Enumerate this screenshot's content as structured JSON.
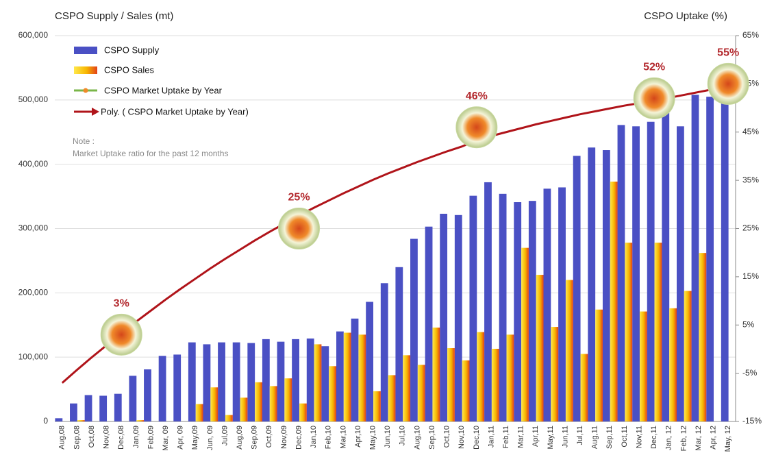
{
  "chart_data": {
    "type": "bar",
    "y_title": "CSPO Supply / Sales (mt)",
    "y2_title": "CSPO Uptake (%)",
    "note": [
      "Note :",
      "Market Uptake ratio for the past 12 months"
    ],
    "categories": [
      "Aug,08",
      "Sep,08",
      "Oct,08",
      "Nov,08",
      "Dec,08",
      "Jan,09",
      "Feb,09",
      "Mar, 09",
      "Apr, 09",
      "May,09",
      "Jun, 09",
      "Jul,09",
      "Aug,09",
      "Sep,09",
      "Oct,09",
      "Nov,09",
      "Dec,09",
      "Jan,10",
      "Feb,10",
      "Mar,10",
      "Apr,10",
      "May,10",
      "Jun,10",
      "Jul,10",
      "Aug,10",
      "Sep,10",
      "Oct,10",
      "Nov,10",
      "Dec,10",
      "Jan,11",
      "Feb,11",
      "Mar,11",
      "Apr,11",
      "May,11",
      "Jun,11",
      "Jul,11",
      "Aug,11",
      "Sep,11",
      "Oct,11",
      "Nov,11",
      "Dec,11",
      "Jan, 12",
      "Feb, 12",
      "Mar, 12",
      "Apr, 12",
      "May, 12"
    ],
    "series": [
      {
        "name": "CSPO Supply",
        "kind": "bar",
        "color": "#4a50c4",
        "values": [
          5000,
          28000,
          41000,
          40000,
          43000,
          71000,
          81000,
          102000,
          104000,
          123000,
          120000,
          123000,
          123000,
          122000,
          128000,
          124000,
          128000,
          129000,
          117000,
          140000,
          160000,
          186000,
          215000,
          240000,
          284000,
          303000,
          323000,
          321000,
          351000,
          372000,
          354000,
          341000,
          343000,
          362000,
          364000,
          413000,
          426000,
          422000,
          461000,
          459000,
          466000,
          480000,
          459000,
          508000,
          505000,
          495000
        ]
      },
      {
        "name": "CSPO Sales",
        "kind": "bar",
        "color": "#f7b500",
        "values": [
          0,
          2000,
          0,
          0,
          0,
          2000,
          0,
          0,
          0,
          27000,
          53000,
          10000,
          37000,
          61000,
          55000,
          67000,
          28000,
          120000,
          86000,
          138000,
          135000,
          47000,
          72000,
          103000,
          88000,
          146000,
          114000,
          95000,
          139000,
          113000,
          135000,
          270000,
          228000,
          147000,
          220000,
          105000,
          174000,
          373000,
          278000,
          171000,
          278000,
          176000,
          203000,
          262000,
          null,
          null
        ]
      },
      {
        "name": "CSPO Market Uptake by Year",
        "kind": "marker",
        "axis": "y2",
        "color": "#7ab648",
        "values": [
          null,
          null,
          null,
          null,
          3,
          null,
          null,
          null,
          null,
          null,
          null,
          null,
          null,
          null,
          null,
          null,
          25,
          null,
          null,
          null,
          null,
          null,
          null,
          null,
          null,
          null,
          null,
          null,
          46,
          null,
          null,
          null,
          null,
          null,
          null,
          null,
          null,
          null,
          null,
          null,
          52,
          null,
          null,
          null,
          null,
          55
        ],
        "value_labels": [
          null,
          null,
          null,
          null,
          "3%",
          null,
          null,
          null,
          null,
          null,
          null,
          null,
          null,
          null,
          null,
          null,
          "25%",
          null,
          null,
          null,
          null,
          null,
          null,
          null,
          null,
          null,
          null,
          null,
          "46%",
          null,
          null,
          null,
          null,
          null,
          null,
          null,
          null,
          null,
          null,
          null,
          "52%",
          null,
          null,
          null,
          null,
          "55%"
        ]
      },
      {
        "name": "Poly. ( CSPO Market Uptake by Year)",
        "kind": "line",
        "axis": "y2",
        "color": "#b0141a",
        "values": [
          -7,
          -4.3,
          -1.7,
          0.8,
          3.3,
          5.7,
          8,
          10.3,
          12.5,
          14.6,
          16.7,
          18.7,
          20.6,
          22.5,
          24.3,
          26,
          27.7,
          29.3,
          30.8,
          32.3,
          33.7,
          35.1,
          36.4,
          37.6,
          38.8,
          39.9,
          41,
          42,
          43.3,
          44.2,
          45,
          45.8,
          46.6,
          47.3,
          48,
          48.7,
          49.3,
          49.9,
          50.5,
          51,
          51.6,
          52.1,
          52.7,
          53.3,
          53.9,
          54.5
        ]
      }
    ],
    "ylim": [
      0,
      600000
    ],
    "yticks": [
      0,
      {
        "value": 100000,
        "label": "100,000"
      },
      {
        "value": 200000,
        "label": "200,000"
      },
      {
        "value": 300000,
        "label": "300,000"
      },
      {
        "value": 400000,
        "label": "400,000"
      },
      {
        "value": 500000,
        "label": "500,000"
      },
      {
        "value": 600000,
        "label": "600,000"
      }
    ],
    "y2lim": [
      -15,
      65
    ],
    "y2ticks": [
      {
        "value": -15,
        "label": "-15%"
      },
      {
        "value": -5,
        "label": "-5%"
      },
      {
        "value": 5,
        "label": "5%"
      },
      {
        "value": 15,
        "label": "15%"
      },
      {
        "value": 25,
        "label": "25%"
      },
      {
        "value": 35,
        "label": "35%"
      },
      {
        "value": 45,
        "label": "45%"
      },
      {
        "value": 55,
        "label": "55%"
      },
      {
        "value": 65,
        "label": "65%"
      }
    ],
    "grid": true
  }
}
